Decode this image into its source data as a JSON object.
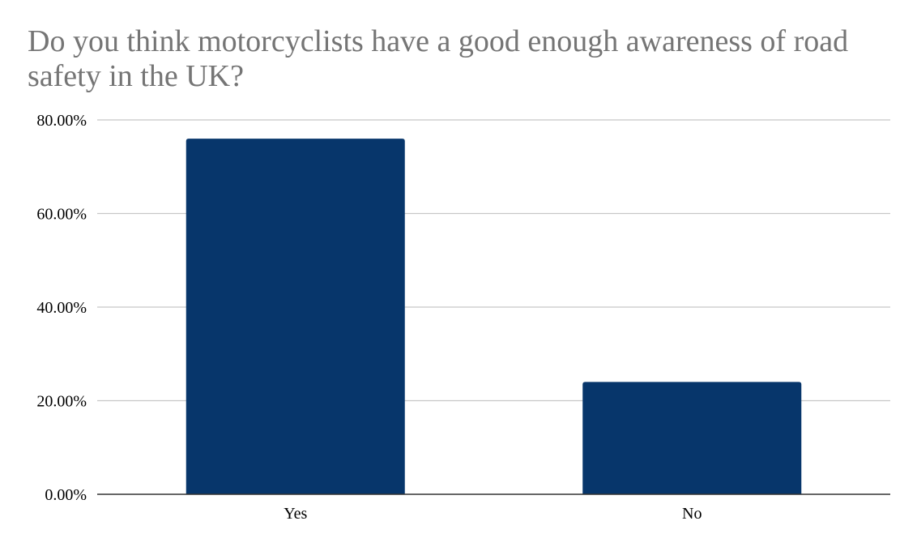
{
  "chart_data": {
    "type": "bar",
    "title": "Do you think motorcyclists have a good enough awareness of road safety in the UK?",
    "categories": [
      "Yes",
      "No"
    ],
    "values": [
      76,
      24
    ],
    "ylim": [
      0,
      80
    ],
    "yticks": [
      0,
      20,
      40,
      60,
      80
    ],
    "ytick_labels": [
      "0.00%",
      "20.00%",
      "40.00%",
      "60.00%",
      "80.00%"
    ],
    "xlabel": "",
    "ylabel": "",
    "grid": true,
    "legend": "none",
    "bar_color": "#07366b",
    "grid_color": "#c8c8c8",
    "title_color": "#757575"
  }
}
